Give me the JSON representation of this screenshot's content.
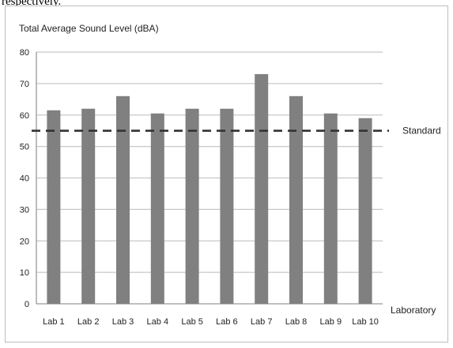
{
  "top_caption": "respectively.",
  "chart_data": {
    "type": "bar",
    "title": "Total Average Sound Level (dBA)",
    "xlabel": "Laboratory",
    "ylabel": "",
    "categories": [
      "Lab 1",
      "Lab 2",
      "Lab 3",
      "Lab 4",
      "Lab 5",
      "Lab 6",
      "Lab 7",
      "Lab 8",
      "Lab 9",
      "Lab 10"
    ],
    "values": [
      61.5,
      62,
      66,
      60.5,
      62,
      62,
      73,
      66,
      60.5,
      59
    ],
    "ylim": [
      0,
      80
    ],
    "yticks": [
      0,
      10,
      20,
      30,
      40,
      50,
      60,
      70,
      80
    ],
    "grid": true,
    "reference_line": {
      "label": "Standard",
      "value": 55,
      "style": "dashed"
    },
    "colors": {
      "bar": "#808080",
      "grid": "#c8c8c8",
      "axis": "#999999",
      "reference": "#333333"
    }
  }
}
